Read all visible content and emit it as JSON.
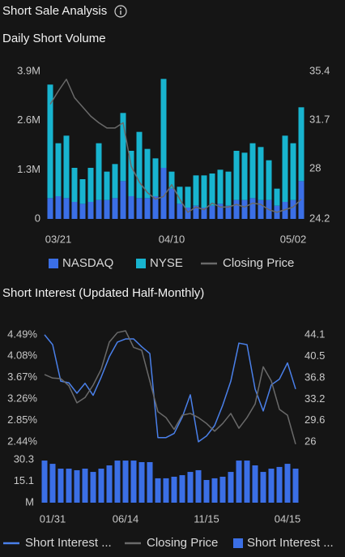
{
  "page_title": "Short Sale Analysis",
  "chart_data": [
    {
      "type": "bar",
      "title": "Daily Short Volume",
      "categories": [
        null,
        "03/21",
        null,
        null,
        null,
        null,
        null,
        null,
        null,
        null,
        null,
        null,
        null,
        null,
        null,
        "04/10",
        null,
        null,
        null,
        null,
        null,
        null,
        null,
        null,
        null,
        null,
        null,
        null,
        null,
        null,
        "05/02",
        null
      ],
      "stacked": true,
      "series": [
        {
          "name": "NASDAQ",
          "type": "bar",
          "color": "#3b6fe6",
          "values": [
            550000,
            600000,
            550000,
            450000,
            400000,
            450000,
            500000,
            500000,
            550000,
            1000000,
            600000,
            550000,
            550000,
            600000,
            1350000,
            800000,
            400000,
            300000,
            350000,
            300000,
            350000,
            400000,
            350000,
            500000,
            500000,
            550000,
            500000,
            500000,
            350000,
            450000,
            500000,
            1000000
          ]
        },
        {
          "name": "NYSE",
          "type": "bar",
          "color": "#18b4cf",
          "values": [
            3000000,
            1400000,
            1650000,
            900000,
            650000,
            900000,
            1500000,
            750000,
            900000,
            1800000,
            1200000,
            1750000,
            1300000,
            1000000,
            2350000,
            450000,
            450000,
            550000,
            800000,
            850000,
            850000,
            900000,
            900000,
            1300000,
            1250000,
            1450000,
            1400000,
            1050000,
            450000,
            1750000,
            1500000,
            1950000
          ]
        },
        {
          "name": "Closing Price",
          "type": "line",
          "axis": "y2",
          "color": "#6a6a6a",
          "values": [
            32.9,
            33.9,
            34.8,
            33.4,
            32.7,
            32.0,
            31.5,
            31.1,
            31.1,
            31.5,
            28.2,
            27.0,
            26.2,
            25.7,
            25.9,
            26.8,
            25.7,
            24.7,
            25.1,
            24.9,
            25.4,
            25.1,
            25.1,
            25.3,
            25.1,
            25.4,
            25.3,
            24.9,
            24.7,
            24.9,
            25.1,
            25.7
          ]
        }
      ],
      "ylim": [
        0,
        3900000
      ],
      "yticks": [
        0,
        {
          "value": 1300000,
          "label": "1.3M"
        },
        {
          "value": 2600000,
          "label": "2.6M"
        },
        {
          "value": 3900000,
          "label": "3.9M"
        }
      ],
      "y2lim": [
        24.2,
        35.4
      ],
      "y2ticks": [
        24.2,
        28.0,
        31.7,
        35.4
      ],
      "grid": false,
      "legend": "bottom"
    },
    {
      "type": "line",
      "title": "Short Interest (Updated Half-Monthly)",
      "categories": [
        null,
        "01/31",
        null,
        null,
        null,
        null,
        null,
        null,
        null,
        null,
        "06/14",
        null,
        null,
        null,
        null,
        null,
        null,
        null,
        null,
        null,
        "11/15",
        null,
        null,
        null,
        null,
        null,
        null,
        null,
        null,
        null,
        "04/15",
        null
      ],
      "series": [
        {
          "name": "Short Interest ...",
          "type": "line",
          "color": "#4a80ea",
          "values": [
            4.49,
            4.3,
            3.6,
            3.57,
            3.37,
            3.56,
            3.33,
            3.68,
            4.07,
            4.35,
            4.41,
            4.41,
            4.26,
            4.13,
            2.52,
            2.52,
            2.6,
            2.91,
            3.34,
            2.44,
            2.55,
            2.75,
            3.14,
            3.6,
            4.33,
            4.3,
            3.45,
            3.03,
            3.53,
            3.64,
            3.95,
            3.45
          ]
        },
        {
          "name": "Closing Price",
          "type": "line",
          "axis": "y2",
          "color": "#6a6a6a",
          "values": [
            37.4,
            36.8,
            36.7,
            35.5,
            32.6,
            33.5,
            35.6,
            38.3,
            42.9,
            44.5,
            44.8,
            42.0,
            41.5,
            36.3,
            31.1,
            30.1,
            28.1,
            30.5,
            30.8,
            30.1,
            29.1,
            27.8,
            29.1,
            30.8,
            28.3,
            30.1,
            32.4,
            38.7,
            36.3,
            31.5,
            30.5,
            25.6
          ]
        },
        {
          "name": "Short Interest ...",
          "type": "bar",
          "axis": "y3",
          "color": "#3b6fe6",
          "values": [
            29.7,
            27.4,
            24.0,
            24.0,
            22.9,
            24.0,
            21.7,
            24.0,
            26.3,
            29.7,
            29.7,
            29.7,
            28.6,
            28.6,
            17.2,
            17.2,
            18.3,
            19.4,
            21.7,
            22.9,
            16.0,
            17.2,
            18.3,
            21.7,
            29.7,
            29.7,
            26.3,
            21.7,
            24.0,
            25.2,
            27.4,
            24.0
          ]
        }
      ],
      "ylim": [
        2.36,
        4.69
      ],
      "yticks": [
        {
          "value": 2.44,
          "label": "2.44%"
        },
        {
          "value": 2.85,
          "label": "2.85%"
        },
        {
          "value": 3.26,
          "label": "3.26%"
        },
        {
          "value": 3.67,
          "label": "3.67%"
        },
        {
          "value": 4.08,
          "label": "4.08%"
        },
        {
          "value": 4.49,
          "label": "4.49%"
        }
      ],
      "y2lim": [
        25.3,
        45.9
      ],
      "y2ticks": [
        26.0,
        29.6,
        33.2,
        36.8,
        40.5,
        44.1
      ],
      "y3lim": [
        0,
        30.3
      ],
      "y3ticks": [
        {
          "value": 0,
          "label": "M"
        },
        15.1,
        30.3
      ],
      "grid": false,
      "legend": "bottom"
    }
  ]
}
